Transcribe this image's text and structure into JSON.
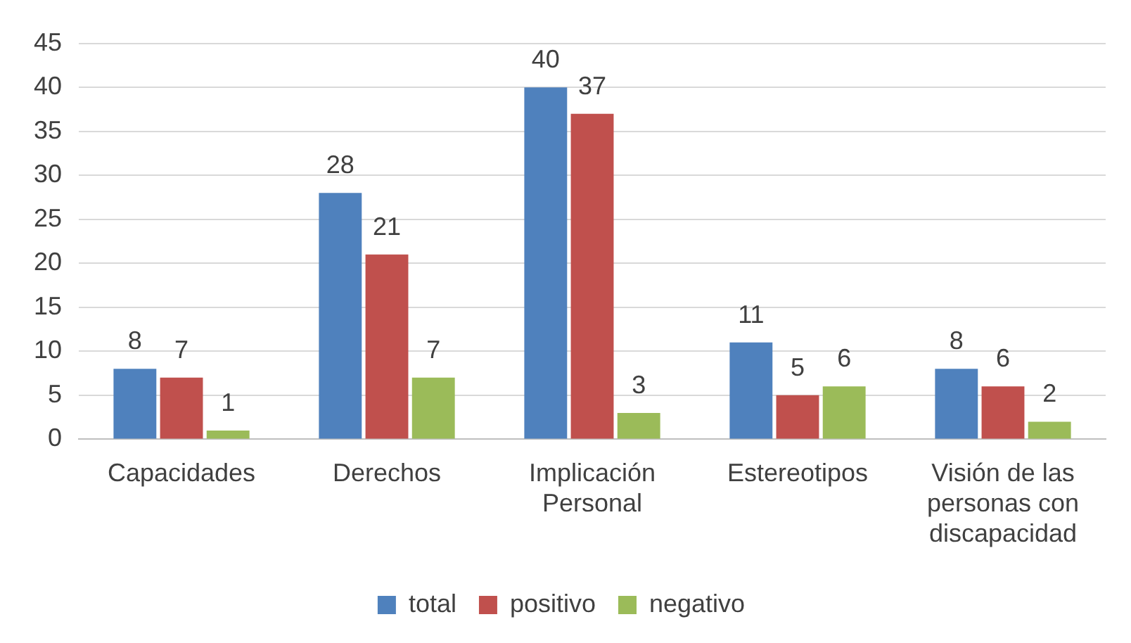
{
  "chart_data": {
    "type": "bar",
    "categories": [
      "Capacidades",
      "Derechos",
      "Implicación Personal",
      "Estereotipos",
      "Visión de las personas con discapacidad"
    ],
    "series": [
      {
        "name": "total",
        "color": "#4f81bd",
        "values": [
          8,
          28,
          40,
          11,
          8
        ]
      },
      {
        "name": "positivo",
        "color": "#c0504d",
        "values": [
          7,
          21,
          37,
          5,
          6
        ]
      },
      {
        "name": "negativo",
        "color": "#9bbb59",
        "values": [
          1,
          7,
          3,
          6,
          2
        ]
      }
    ],
    "ylim": [
      0,
      45
    ],
    "yticks": [
      0,
      5,
      10,
      15,
      20,
      25,
      30,
      35,
      40,
      45
    ],
    "grid": "y",
    "legend": "bottom",
    "data_labels": true
  }
}
